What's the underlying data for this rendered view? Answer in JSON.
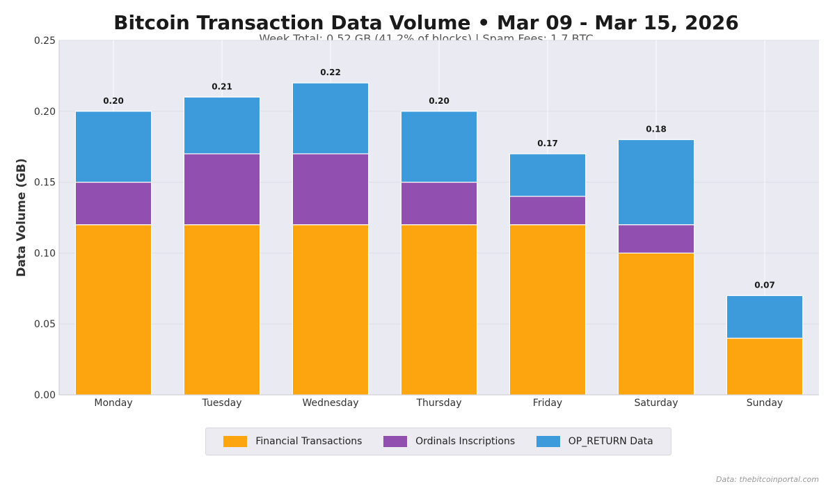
{
  "title": "Bitcoin Transaction Data Volume  •  Mar 09 - Mar 15, 2026",
  "subtitle": "Week Total: 0.52 GB (41.2% of blocks)  |  Spam Fees: 1.7 BTC",
  "source": "Data: thebitcoinportal.com",
  "colors": {
    "financial": "#fca50f",
    "ordinals": "#914fb0",
    "opreturn": "#3d9bdc",
    "plot_bg": "#eaeaf2",
    "grid": "#ffffff"
  },
  "chart_data": {
    "type": "bar",
    "stacked": true,
    "categories": [
      "Monday",
      "Tuesday",
      "Wednesday",
      "Thursday",
      "Friday",
      "Saturday",
      "Sunday"
    ],
    "series": [
      {
        "name": "Financial Transactions",
        "color": "#fca50f",
        "values": [
          0.12,
          0.12,
          0.12,
          0.12,
          0.12,
          0.1,
          0.04
        ]
      },
      {
        "name": "Ordinals Inscriptions",
        "color": "#914fb0",
        "values": [
          0.03,
          0.05,
          0.05,
          0.03,
          0.02,
          0.02,
          0.0
        ]
      },
      {
        "name": "OP_RETURN Data",
        "color": "#3d9bdc",
        "values": [
          0.05,
          0.04,
          0.05,
          0.05,
          0.03,
          0.06,
          0.03
        ]
      }
    ],
    "totals_labels": [
      "0.20",
      "0.21",
      "0.22",
      "0.20",
      "0.17",
      "0.18",
      "0.07"
    ],
    "ylabel": "Data Volume (GB)",
    "ylim": [
      0,
      0.25
    ],
    "yticks": [
      "0.00",
      "0.05",
      "0.10",
      "0.15",
      "0.20",
      "0.25"
    ],
    "grid": true,
    "legend_position": "bottom-center"
  }
}
